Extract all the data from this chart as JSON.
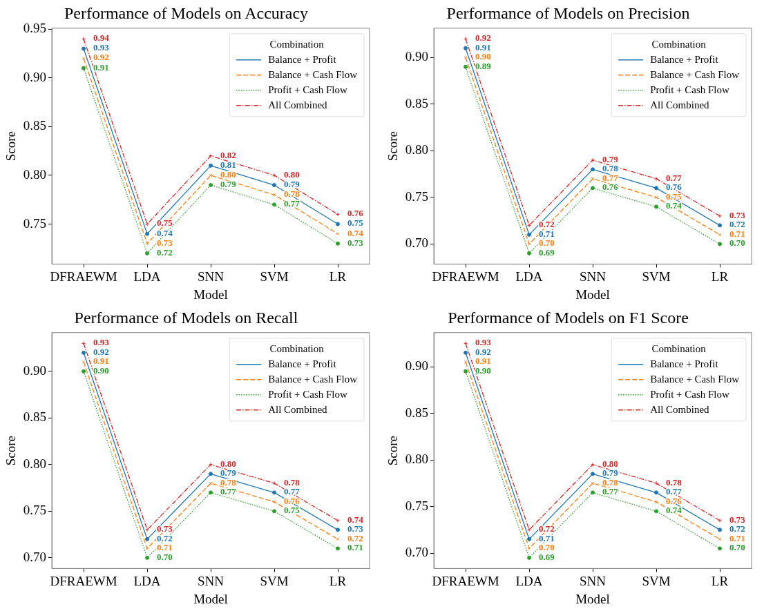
{
  "chart_data": [
    {
      "type": "line",
      "title": "Performance of Models on Accuracy",
      "xlabel": "Model",
      "ylabel": "Score",
      "legend_title": "Combination",
      "legend": "top right",
      "categories": [
        "DFRAEWM",
        "LDA",
        "SNN",
        "SVM",
        "LR"
      ],
      "ylim": [
        0.709,
        0.951
      ],
      "yticks": [
        {
          "value": 0.75,
          "label": "0.75"
        },
        {
          "value": 0.8,
          "label": "0.80"
        },
        {
          "value": 0.85,
          "label": "0.85"
        },
        {
          "value": 0.9,
          "label": "0.90"
        },
        {
          "value": 0.95,
          "label": "0.95"
        }
      ],
      "series": [
        {
          "name": "Balance + Profit",
          "color": "#1f77b4",
          "marker": "circle",
          "line_style": "solid",
          "values": [
            0.93,
            0.74,
            0.81,
            0.79,
            0.75
          ],
          "value_labels": [
            "0.93",
            "0.74",
            "0.81",
            "0.79",
            "0.75"
          ]
        },
        {
          "name": "Balance + Cash Flow",
          "color": "#ff7f0e",
          "marker": "cross",
          "line_style": "dashed",
          "values": [
            0.92,
            0.73,
            0.8,
            0.78,
            0.74
          ],
          "value_labels": [
            "0.92",
            "0.73",
            "0.80",
            "0.78",
            "0.74"
          ]
        },
        {
          "name": "Profit + Cash Flow",
          "color": "#2ca02c",
          "marker": "circle",
          "line_style": "dotted",
          "values": [
            0.91,
            0.72,
            0.79,
            0.77,
            0.73
          ],
          "value_labels": [
            "0.91",
            "0.72",
            "0.79",
            "0.77",
            "0.73"
          ]
        },
        {
          "name": "All Combined",
          "color": "#d62728",
          "marker": "plus",
          "line_style": "dashdot",
          "values": [
            0.94,
            0.75,
            0.82,
            0.8,
            0.76
          ],
          "value_labels": [
            "0.94",
            "0.75",
            "0.82",
            "0.80",
            "0.76"
          ]
        }
      ]
    },
    {
      "type": "line",
      "title": "Performance of Models on Precision",
      "xlabel": "Model",
      "ylabel": "Score",
      "legend_title": "Combination",
      "legend": "top right",
      "categories": [
        "DFRAEWM",
        "LDA",
        "SNN",
        "SVM",
        "LR"
      ],
      "ylim": [
        0.6785,
        0.9315
      ],
      "yticks": [
        {
          "value": 0.7,
          "label": "0.70"
        },
        {
          "value": 0.75,
          "label": "0.75"
        },
        {
          "value": 0.8,
          "label": "0.80"
        },
        {
          "value": 0.85,
          "label": "0.85"
        },
        {
          "value": 0.9,
          "label": "0.90"
        }
      ],
      "series": [
        {
          "name": "Balance + Profit",
          "color": "#1f77b4",
          "marker": "circle",
          "line_style": "solid",
          "values": [
            0.91,
            0.71,
            0.78,
            0.76,
            0.72
          ],
          "value_labels": [
            "0.91",
            "0.71",
            "0.78",
            "0.76",
            "0.72"
          ]
        },
        {
          "name": "Balance + Cash Flow",
          "color": "#ff7f0e",
          "marker": "cross",
          "line_style": "dashed",
          "values": [
            0.9,
            0.7,
            0.77,
            0.75,
            0.71
          ],
          "value_labels": [
            "0.90",
            "0.70",
            "0.77",
            "0.75",
            "0.71"
          ]
        },
        {
          "name": "Profit + Cash Flow",
          "color": "#2ca02c",
          "marker": "circle",
          "line_style": "dotted",
          "values": [
            0.89,
            0.69,
            0.76,
            0.74,
            0.7
          ],
          "value_labels": [
            "0.89",
            "0.69",
            "0.76",
            "0.74",
            "0.70"
          ]
        },
        {
          "name": "All Combined",
          "color": "#d62728",
          "marker": "plus",
          "line_style": "dashdot",
          "values": [
            0.92,
            0.72,
            0.79,
            0.77,
            0.73
          ],
          "value_labels": [
            "0.92",
            "0.72",
            "0.79",
            "0.77",
            "0.73"
          ]
        }
      ]
    },
    {
      "type": "line",
      "title": "Performance of Models on Recall",
      "xlabel": "Model",
      "ylabel": "Score",
      "legend_title": "Combination",
      "legend": "top right",
      "categories": [
        "DFRAEWM",
        "LDA",
        "SNN",
        "SVM",
        "LR"
      ],
      "ylim": [
        0.6885,
        0.9415
      ],
      "yticks": [
        {
          "value": 0.7,
          "label": "0.70"
        },
        {
          "value": 0.75,
          "label": "0.75"
        },
        {
          "value": 0.8,
          "label": "0.80"
        },
        {
          "value": 0.85,
          "label": "0.85"
        },
        {
          "value": 0.9,
          "label": "0.90"
        }
      ],
      "series": [
        {
          "name": "Balance + Profit",
          "color": "#1f77b4",
          "marker": "circle",
          "line_style": "solid",
          "values": [
            0.92,
            0.72,
            0.79,
            0.77,
            0.73
          ],
          "value_labels": [
            "0.92",
            "0.72",
            "0.79",
            "0.77",
            "0.73"
          ]
        },
        {
          "name": "Balance + Cash Flow",
          "color": "#ff7f0e",
          "marker": "cross",
          "line_style": "dashed",
          "values": [
            0.91,
            0.71,
            0.78,
            0.76,
            0.72
          ],
          "value_labels": [
            "0.91",
            "0.71",
            "0.78",
            "0.76",
            "0.72"
          ]
        },
        {
          "name": "Profit + Cash Flow",
          "color": "#2ca02c",
          "marker": "circle",
          "line_style": "dotted",
          "values": [
            0.9,
            0.7,
            0.77,
            0.75,
            0.71
          ],
          "value_labels": [
            "0.90",
            "0.70",
            "0.77",
            "0.75",
            "0.71"
          ]
        },
        {
          "name": "All Combined",
          "color": "#d62728",
          "marker": "plus",
          "line_style": "dashdot",
          "values": [
            0.93,
            0.73,
            0.8,
            0.78,
            0.74
          ],
          "value_labels": [
            "0.93",
            "0.73",
            "0.80",
            "0.78",
            "0.74"
          ]
        }
      ]
    },
    {
      "type": "line",
      "title": "Performance of Models on F1 Score",
      "xlabel": "Model",
      "ylabel": "Score",
      "legend_title": "Combination",
      "legend": "top right",
      "categories": [
        "DFRAEWM",
        "LDA",
        "SNN",
        "SVM",
        "LR"
      ],
      "ylim": [
        0.6835,
        0.9365
      ],
      "yticks": [
        {
          "value": 0.7,
          "label": "0.70"
        },
        {
          "value": 0.75,
          "label": "0.75"
        },
        {
          "value": 0.8,
          "label": "0.80"
        },
        {
          "value": 0.85,
          "label": "0.85"
        },
        {
          "value": 0.9,
          "label": "0.90"
        }
      ],
      "series": [
        {
          "name": "Balance + Profit",
          "color": "#1f77b4",
          "marker": "circle",
          "line_style": "solid",
          "values": [
            0.915,
            0.715,
            0.785,
            0.765,
            0.725
          ],
          "value_labels": [
            "0.92",
            "0.71",
            "0.79",
            "0.77",
            "0.72"
          ]
        },
        {
          "name": "Balance + Cash Flow",
          "color": "#ff7f0e",
          "marker": "cross",
          "line_style": "dashed",
          "values": [
            0.905,
            0.705,
            0.775,
            0.755,
            0.715
          ],
          "value_labels": [
            "0.91",
            "0.70",
            "0.78",
            "0.76",
            "0.71"
          ]
        },
        {
          "name": "Profit + Cash Flow",
          "color": "#2ca02c",
          "marker": "circle",
          "line_style": "dotted",
          "values": [
            0.895,
            0.695,
            0.765,
            0.745,
            0.705
          ],
          "value_labels": [
            "0.90",
            "0.69",
            "0.77",
            "0.74",
            "0.70"
          ]
        },
        {
          "name": "All Combined",
          "color": "#d62728",
          "marker": "plus",
          "line_style": "dashdot",
          "values": [
            0.925,
            0.725,
            0.795,
            0.775,
            0.735
          ],
          "value_labels": [
            "0.93",
            "0.72",
            "0.80",
            "0.78",
            "0.73"
          ]
        }
      ]
    }
  ]
}
